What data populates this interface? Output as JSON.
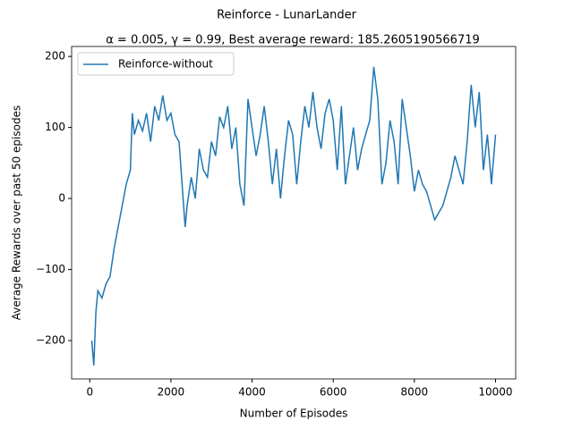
{
  "chart_data": {
    "type": "line",
    "title": "Reinforce - LunarLander",
    "subtitle": "α = 0.005, γ = 0.99,  Best average reward: 185.2605190566719",
    "x_label": "Number of Episodes",
    "y_label": "Average Rewards over past 50 episodes",
    "x": [
      50,
      100,
      150,
      200,
      300,
      400,
      500,
      600,
      700,
      800,
      900,
      1000,
      1050,
      1100,
      1200,
      1300,
      1400,
      1500,
      1600,
      1700,
      1800,
      1900,
      2000,
      2100,
      2200,
      2300,
      2350,
      2400,
      2500,
      2600,
      2700,
      2800,
      2900,
      3000,
      3100,
      3200,
      3300,
      3400,
      3500,
      3600,
      3700,
      3800,
      3900,
      4000,
      4100,
      4200,
      4300,
      4400,
      4500,
      4600,
      4700,
      4800,
      4900,
      5000,
      5100,
      5200,
      5300,
      5400,
      5500,
      5600,
      5700,
      5800,
      5900,
      6000,
      6100,
      6200,
      6300,
      6400,
      6500,
      6600,
      6700,
      6800,
      6900,
      7000,
      7100,
      7200,
      7300,
      7400,
      7500,
      7600,
      7700,
      7800,
      7900,
      8000,
      8100,
      8200,
      8300,
      8400,
      8500,
      8600,
      8700,
      8800,
      8900,
      9000,
      9100,
      9200,
      9300,
      9400,
      9500,
      9600,
      9700,
      9800,
      9900,
      10000
    ],
    "series": [
      {
        "name": "Reinforce-without",
        "color": "#1f77b4",
        "values": [
          -200,
          -235,
          -160,
          -130,
          -140,
          -120,
          -110,
          -70,
          -40,
          -10,
          20,
          40,
          120,
          90,
          110,
          95,
          120,
          80,
          130,
          110,
          145,
          110,
          120,
          90,
          80,
          0,
          -40,
          -10,
          30,
          0,
          70,
          40,
          30,
          80,
          60,
          115,
          100,
          130,
          70,
          100,
          20,
          -10,
          140,
          100,
          60,
          90,
          130,
          80,
          20,
          70,
          0,
          60,
          110,
          90,
          20,
          80,
          130,
          100,
          150,
          100,
          70,
          120,
          140,
          110,
          40,
          130,
          20,
          60,
          100,
          40,
          70,
          90,
          110,
          185.26,
          140,
          20,
          50,
          110,
          80,
          20,
          140,
          100,
          60,
          10,
          40,
          20,
          10,
          -10,
          -30,
          -20,
          -10,
          10,
          30,
          60,
          40,
          20,
          80,
          160,
          100,
          150,
          40,
          90,
          20,
          90
        ]
      }
    ],
    "xlim": [
      -447,
      10497
    ],
    "ylim": [
      -254,
      214
    ],
    "xticks": [
      0,
      2000,
      4000,
      6000,
      8000,
      10000
    ],
    "yticks": [
      {
        "value": -200,
        "label": "−200"
      },
      {
        "value": -100,
        "label": "−100"
      },
      0,
      100,
      200
    ],
    "legend": "upper left"
  }
}
